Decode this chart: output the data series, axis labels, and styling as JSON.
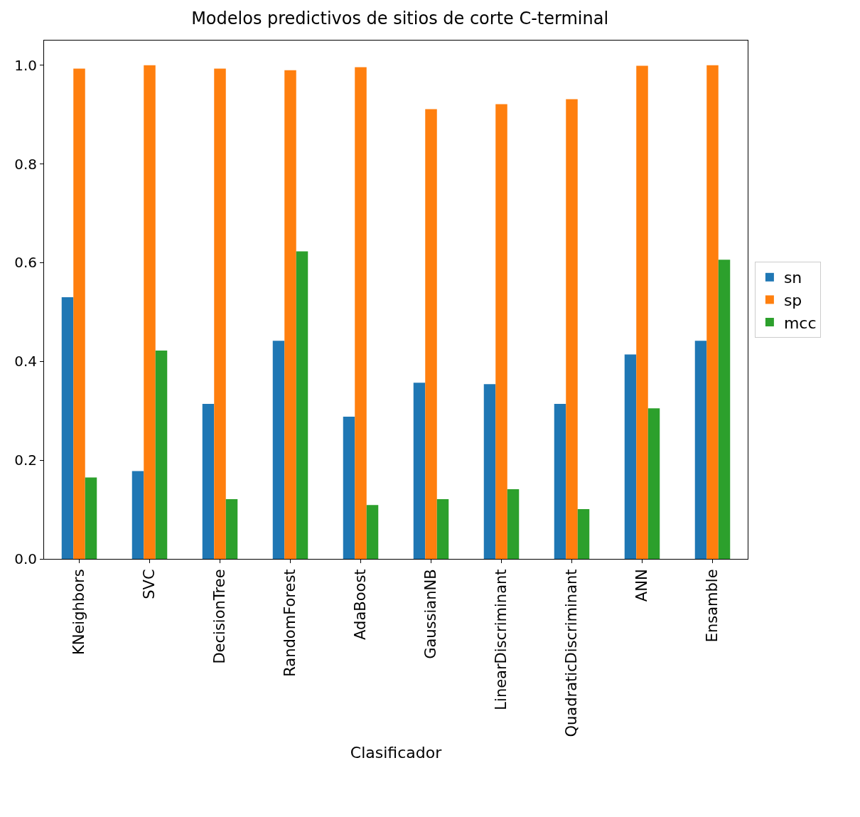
{
  "chart_data": {
    "type": "bar",
    "title": "Modelos predictivos de sitios de corte C-terminal",
    "xlabel": "Clasificador",
    "categories": [
      "KNeighbors",
      "SVC",
      "DecisionTree",
      "RandomForest",
      "AdaBoost",
      "GaussianNB",
      "LinearDiscriminant",
      "QuadraticDiscriminant",
      "ANN",
      "Ensamble"
    ],
    "series": [
      {
        "name": "sn",
        "color": "#1f77b4",
        "values": [
          0.53,
          0.178,
          0.314,
          0.442,
          0.288,
          0.357,
          0.354,
          0.314,
          0.414,
          0.442
        ]
      },
      {
        "name": "sp",
        "color": "#ff7f0e",
        "values": [
          0.993,
          1.0,
          0.993,
          0.99,
          0.996,
          0.911,
          0.921,
          0.931,
          0.999,
          1.0
        ]
      },
      {
        "name": "mcc",
        "color": "#2ca02c",
        "values": [
          0.165,
          0.422,
          0.121,
          0.623,
          0.109,
          0.121,
          0.141,
          0.101,
          0.305,
          0.606
        ]
      }
    ],
    "ylim": [
      0,
      1.05
    ],
    "yticks": [
      {
        "value": 0,
        "label": "0.0"
      },
      0.2,
      0.4,
      0.6,
      0.8,
      {
        "value": 1,
        "label": "1.0"
      }
    ],
    "legend": "right"
  }
}
